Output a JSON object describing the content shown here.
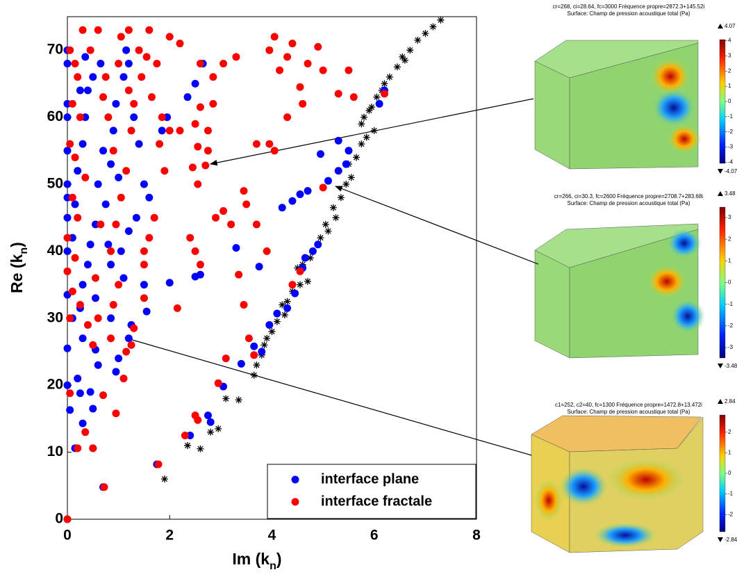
{
  "chart_data": {
    "type": "scatter",
    "x_label": [
      "Im (k",
      "n",
      ")"
    ],
    "y_label": [
      "Re (k",
      "n",
      ")"
    ],
    "xlim": [
      0,
      8
    ],
    "ylim": [
      0,
      75
    ],
    "xticks": [
      0,
      2,
      4,
      6,
      8
    ],
    "yticks": [
      0,
      10,
      20,
      30,
      40,
      50,
      60,
      70
    ],
    "legend": "lower right",
    "series": [
      {
        "name": "interface plane",
        "color": "#0000ff",
        "marker": "circle",
        "x": [
          0,
          0.7,
          1.75,
          0.15,
          0.5,
          0.05,
          0.3,
          0.5,
          0.25,
          0.45,
          0,
          0.2,
          0.6,
          0.55,
          0,
          0.3,
          0.95,
          1.0,
          0.1,
          0.25,
          0,
          0.3,
          0.85,
          1.2,
          1.25,
          1.5,
          1.55,
          2.0,
          2.5,
          2.6,
          3.3,
          3.75,
          3.4,
          3.65,
          3.8,
          3.05,
          2.75,
          2.8,
          2.4,
          3.95,
          4.1,
          4.3,
          4.45,
          4.6,
          4.65,
          4.8,
          4.9,
          4.2,
          4.4,
          4.55,
          4.7,
          5.1,
          5.3,
          5.45,
          5.5,
          4.95,
          5.3,
          6.1,
          6.2,
          0,
          0,
          0,
          0,
          0,
          0,
          0,
          0,
          0,
          0.1,
          0.15,
          0.2,
          0.3,
          0.35,
          0.4,
          0.35,
          0.5,
          0.55,
          0.6,
          0.7,
          0.75,
          0.8,
          0.85,
          0.9,
          0.95,
          1.1,
          1.2,
          1.15,
          1.3,
          1.4,
          1.5,
          1.6,
          1.35,
          1.2,
          1.05,
          1.1,
          0.4,
          0.45,
          0.55,
          1.85,
          1.95,
          2.35,
          2.5,
          2.65,
          0.25,
          0.65,
          1.0,
          0.85
        ],
        "y": [
          0,
          4.8,
          8.2,
          10.6,
          10.6,
          16.3,
          14.3,
          16.5,
          18.8,
          19,
          20,
          21,
          23,
          25.3,
          25.5,
          27,
          22,
          24,
          30,
          31.5,
          33.5,
          35,
          30,
          27,
          29,
          35,
          31,
          35.3,
          36.2,
          36.5,
          40.5,
          37.7,
          23.2,
          25.8,
          25,
          19.8,
          15.5,
          14.5,
          12.5,
          29,
          30.7,
          31.5,
          33.7,
          37.5,
          39,
          40,
          41,
          46.5,
          47.5,
          48.5,
          49,
          50.5,
          52,
          53,
          55,
          54.5,
          56.5,
          62,
          64,
          40,
          45,
          48,
          50,
          55,
          60,
          62,
          68,
          70,
          42,
          47,
          52,
          56,
          60,
          64,
          69,
          66,
          44,
          50,
          55,
          47,
          41,
          38,
          58,
          62,
          66,
          68,
          70,
          60,
          56,
          50,
          48,
          45,
          43,
          40,
          36,
          38,
          41,
          33,
          58,
          60,
          63,
          65,
          68,
          64,
          68,
          51,
          53
        ]
      },
      {
        "name": "interface fractale",
        "color": "#ff0000",
        "marker": "circle",
        "x": [
          0,
          0.72,
          1.78,
          0.2,
          0.5,
          0.35,
          0.7,
          0.05,
          0.95,
          1.1,
          1.15,
          1.25,
          1.3,
          1.5,
          1.5,
          2.15,
          2.3,
          2.5,
          2.55,
          2.95,
          3.1,
          3.35,
          3.45,
          3.55,
          3.65,
          2.4,
          2.5,
          2.6,
          2.55,
          2.45,
          2.7,
          2.75,
          2.9,
          3.05,
          2.55,
          2.5,
          2.75,
          3.2,
          3.5,
          3.45,
          3.7,
          3.9,
          4.4,
          4.55,
          3.7,
          3.95,
          4.05,
          4.3,
          4.6,
          4.55,
          4.15,
          4.3,
          3.95,
          4.05,
          4.4,
          4.7,
          5.0,
          4.9,
          5.5,
          5.6,
          5.3,
          6.2,
          5.0,
          3.05,
          3.3,
          2.85,
          2.6,
          2.2,
          2.0,
          1.6,
          1.2,
          1.05,
          0.6,
          0.3,
          0.05,
          0.15,
          0.2,
          0.1,
          0.25,
          0.05,
          0.15,
          0.35,
          0.1,
          0.2,
          0,
          0.15,
          0,
          0.1,
          0.25,
          0.05,
          0.4,
          0.5,
          0.6,
          0.85,
          0.9,
          1.0,
          0.85,
          0.95,
          1.05,
          1.15,
          0.9,
          0.8,
          0.7,
          1.25,
          1.3,
          1.45,
          1.65,
          1.8,
          1.9,
          2.2,
          1.7,
          1.6,
          1.5,
          0.65,
          0.55,
          0.75,
          0.45,
          1.4,
          1.55,
          1.0,
          1.2,
          1.75,
          1.85,
          2.0,
          2.6,
          2.85
        ],
        "y": [
          0,
          4.8,
          8.2,
          10.6,
          10.6,
          13,
          18.5,
          18.8,
          15.8,
          21,
          25,
          26,
          28.5,
          33,
          38,
          31.5,
          12.5,
          15.5,
          14.8,
          20.3,
          24,
          36.5,
          32,
          27,
          24.5,
          42,
          40,
          38,
          50,
          52.5,
          52.8,
          55,
          45,
          46,
          55.6,
          59,
          58,
          44,
          47,
          49,
          44,
          40,
          35,
          37,
          56,
          56,
          55,
          60,
          62,
          64.5,
          67,
          69,
          70,
          72,
          71,
          68,
          67,
          70.5,
          67,
          63,
          63.5,
          63.5,
          49.5,
          68,
          69,
          66,
          68,
          71,
          72,
          73,
          73,
          72,
          73,
          73,
          70,
          68,
          66,
          62,
          60,
          56,
          54,
          51,
          48,
          45,
          42,
          39,
          37,
          34,
          32,
          30,
          29,
          26,
          30,
          27,
          32,
          35,
          40,
          44,
          48,
          52,
          55,
          60,
          63,
          58,
          62,
          66,
          63,
          56,
          52,
          58,
          45,
          42,
          40,
          44,
          36,
          66,
          70,
          70,
          69,
          68,
          64,
          68,
          60,
          58,
          61.5,
          62
        ]
      },
      {
        "color": "#000000",
        "marker": "star",
        "x": [
          1.9,
          2.35,
          2.6,
          2.8,
          2.95,
          3.1,
          3.35,
          3.65,
          3.7,
          3.8,
          3.85,
          3.9,
          4.0,
          4.1,
          4.2,
          4.25,
          4.3,
          4.4,
          4.5,
          4.55,
          4.7,
          4.6,
          4.75,
          4.8,
          4.9,
          4.95,
          5.05,
          5.1,
          5.2,
          5.25,
          5.35,
          5.45,
          5.5,
          5.55,
          5.65,
          5.75,
          5.75,
          5.8,
          5.85,
          5.9,
          5.95,
          6.0,
          6.05,
          6.15,
          6.2,
          6.3,
          6.45,
          6.55,
          6.6,
          6.7,
          6.85,
          7.0,
          7.15,
          7.3
        ],
        "y": [
          6,
          11,
          10.5,
          13,
          13.5,
          18,
          17.8,
          21.5,
          23,
          24.5,
          26,
          27,
          28,
          29.5,
          32,
          30.5,
          32.5,
          34,
          37.5,
          35,
          35.5,
          38,
          39,
          40,
          41,
          42,
          44,
          43,
          46.5,
          45,
          48,
          50,
          53,
          51,
          54,
          56,
          59,
          60,
          57,
          61,
          61.5,
          58,
          63,
          64,
          65,
          66,
          67.5,
          69,
          68.5,
          70,
          71.5,
          72.5,
          73.5,
          74.5
        ]
      }
    ]
  },
  "insets": [
    {
      "title": [
        "cr=268, ci=28.64, fc=3000 Fréquence propre=2872.3+145.52i",
        "Surface: Champ de pression acoustique total (Pa)"
      ],
      "max": 4.07,
      "min": -4.07,
      "ticks": [
        4,
        3,
        2,
        1,
        0,
        -1,
        -2,
        -3,
        -4
      ]
    },
    {
      "title": [
        "cr=266, ci=30.3, fc=2600 Fréquence propre=2708.7+283.68i",
        "Surface: Champ de pression acoustique total (Pa)"
      ],
      "max": 3.48,
      "min": -3.48,
      "ticks": [
        3,
        2,
        1,
        0,
        -1,
        -2,
        -3
      ]
    },
    {
      "title": [
        "c1=252, c2=40, fc=1300 Fréquence propre=1472.8+13.472i",
        "Surface: Champ de pression acoustique total (Pa)"
      ],
      "max": 2.84,
      "min": -2.84,
      "ticks": [
        2,
        1,
        0,
        -1,
        -2
      ]
    }
  ]
}
